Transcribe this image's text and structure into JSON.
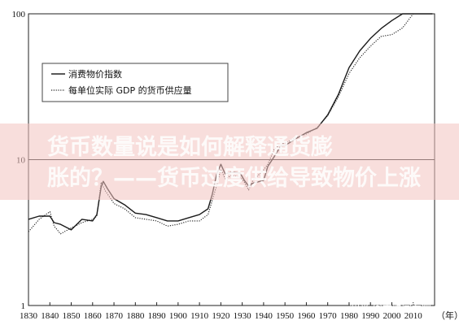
{
  "chart_data": {
    "type": "line",
    "title": "",
    "xlabel": "（年）",
    "ylabel": "",
    "yscale": "log",
    "xlim": [
      1830,
      2020
    ],
    "ylim": [
      1,
      100
    ],
    "x_ticks": [
      "1830",
      "1840",
      "1850",
      "1860",
      "1870",
      "1880",
      "1890",
      "1900",
      "1910",
      "1920",
      "1930",
      "1940",
      "1950",
      "1960",
      "1970",
      "1980",
      "1990",
      "2000",
      "2010"
    ],
    "y_ticks": [
      "1",
      "10",
      "100"
    ],
    "legend_position": "top-left",
    "grid": "horizontal line at 10",
    "series": [
      {
        "name": "消费物价指数",
        "style": "solid",
        "x": [
          1830,
          1835,
          1840,
          1842,
          1845,
          1850,
          1855,
          1860,
          1862,
          1864,
          1865,
          1867,
          1870,
          1875,
          1880,
          1885,
          1890,
          1895,
          1900,
          1905,
          1910,
          1914,
          1916,
          1918,
          1920,
          1922,
          1925,
          1929,
          1931,
          1933,
          1935,
          1940,
          1942,
          1945,
          1948,
          1950,
          1955,
          1960,
          1965,
          1970,
          1975,
          1980,
          1985,
          1990,
          1995,
          2000,
          2005,
          2010,
          2015,
          2019
        ],
        "y": [
          3.9,
          4.1,
          4.1,
          3.7,
          3.6,
          3.3,
          3.9,
          3.8,
          4.2,
          6.5,
          7.1,
          6.3,
          5.4,
          4.9,
          4.3,
          4.2,
          4.0,
          3.8,
          3.8,
          4.0,
          4.2,
          4.6,
          5.8,
          7.9,
          9.3,
          8.0,
          8.2,
          8.1,
          7.2,
          6.6,
          6.9,
          7.2,
          9.0,
          10.5,
          12.4,
          12.5,
          13.9,
          15.3,
          16.4,
          20.3,
          28.0,
          42.8,
          55.8,
          67.8,
          79.3,
          89.9,
          101,
          111,
          118,
          124
        ]
      },
      {
        "name": "每单位实际 GDP 的货币供应量",
        "style": "dotted",
        "x": [
          1830,
          1835,
          1840,
          1842,
          1845,
          1850,
          1855,
          1860,
          1862,
          1864,
          1866,
          1870,
          1875,
          1880,
          1885,
          1890,
          1895,
          1900,
          1905,
          1910,
          1914,
          1918,
          1920,
          1922,
          1925,
          1929,
          1931,
          1933,
          1935,
          1940,
          1942,
          1945,
          1948,
          1950,
          1955,
          1960,
          1965,
          1970,
          1975,
          1980,
          1985,
          1990,
          1995,
          2000,
          2005,
          2010,
          2015,
          2019
        ],
        "y": [
          3.2,
          3.9,
          4.4,
          3.5,
          3.1,
          3.4,
          3.7,
          3.9,
          4.1,
          7.0,
          6.1,
          5.0,
          4.6,
          4.0,
          3.9,
          3.8,
          3.5,
          3.6,
          3.8,
          3.8,
          4.2,
          6.6,
          8.6,
          7.4,
          7.8,
          7.6,
          7.0,
          6.2,
          7.2,
          8.5,
          9.3,
          11.8,
          12.8,
          13.0,
          14.2,
          15.0,
          16.6,
          20.0,
          27.0,
          39.0,
          50.0,
          60.0,
          70.0,
          72.0,
          80.0,
          102,
          112,
          124
        ]
      }
    ]
  },
  "watermark": {
    "line1": "货币数量说是如何解释通货膨",
    "line2": "胀的？——货币过度供给导致物价上涨"
  },
  "credit": {
    "text": "知乎 @青姐学宏观"
  }
}
